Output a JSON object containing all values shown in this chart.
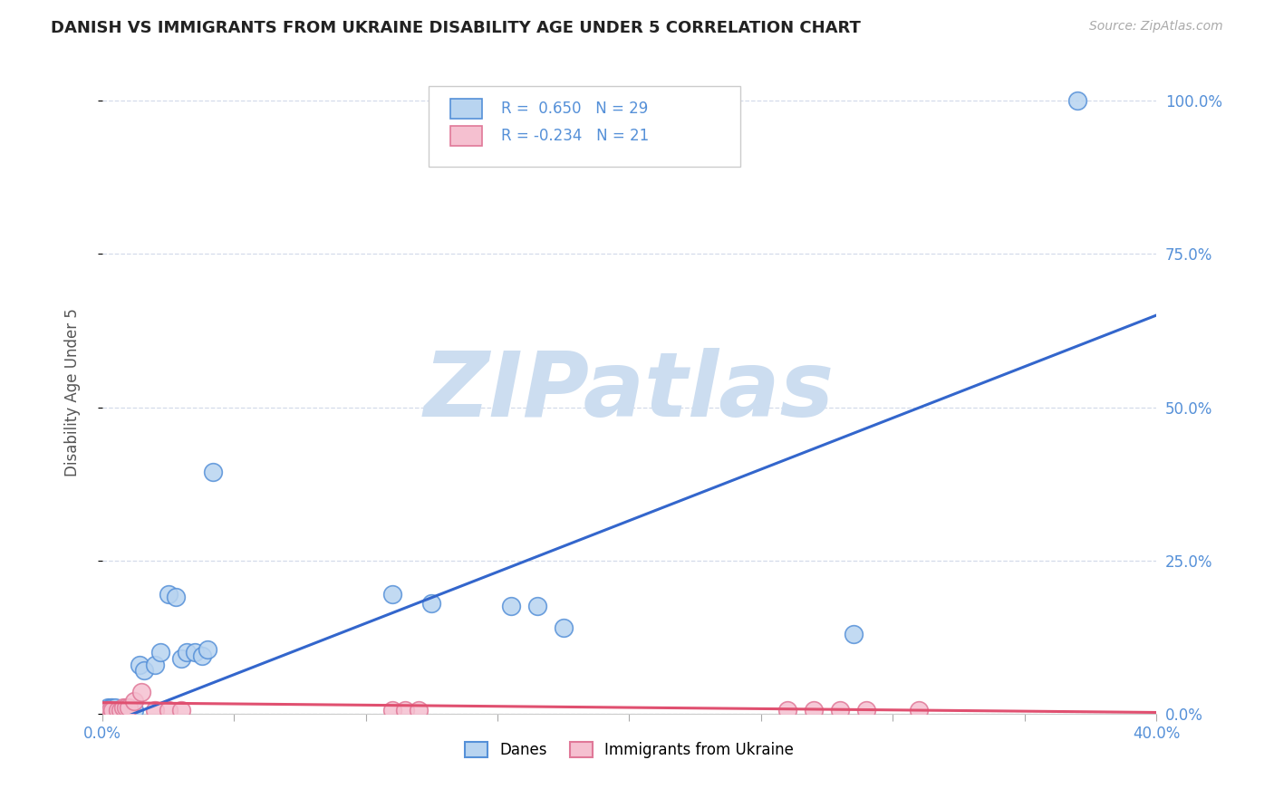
{
  "title": "DANISH VS IMMIGRANTS FROM UKRAINE DISABILITY AGE UNDER 5 CORRELATION CHART",
  "source": "Source: ZipAtlas.com",
  "ylabel": "Disability Age Under 5",
  "background_color": "#ffffff",
  "grid_color": "#d0d8e8",
  "danes_face_color": "#b8d4f0",
  "danes_edge_color": "#5590d8",
  "ukraine_face_color": "#f5c0d0",
  "ukraine_edge_color": "#e07898",
  "danes_line_color": "#3366cc",
  "ukraine_line_color": "#e05070",
  "tick_color": "#5590d8",
  "legend_danes_R": "0.650",
  "legend_danes_N": "29",
  "legend_ukraine_R": "-0.234",
  "legend_ukraine_N": "21",
  "watermark_text": "ZIPatlas",
  "watermark_color": "#ccddf0",
  "xlim": [
    0.0,
    0.4
  ],
  "ylim": [
    0.0,
    105.0
  ],
  "yticks": [
    0.0,
    25.0,
    50.0,
    75.0,
    100.0
  ],
  "ytick_labels": [
    "0.0%",
    "25.0%",
    "50.0%",
    "75.0%",
    "100.0%"
  ],
  "xticks": [
    0.0,
    0.05,
    0.1,
    0.15,
    0.2,
    0.25,
    0.3,
    0.35,
    0.4
  ],
  "xtick_labels_show": [
    "0.0%",
    "",
    "",
    "",
    "",
    "",
    "",
    "",
    "40.0%"
  ],
  "danes_x": [
    0.002,
    0.003,
    0.004,
    0.005,
    0.006,
    0.007,
    0.008,
    0.009,
    0.01,
    0.012,
    0.014,
    0.016,
    0.02,
    0.022,
    0.025,
    0.028,
    0.03,
    0.032,
    0.035,
    0.038,
    0.04,
    0.042,
    0.11,
    0.125,
    0.155,
    0.165,
    0.175,
    0.285,
    0.37
  ],
  "danes_y": [
    1.0,
    1.0,
    1.0,
    1.0,
    0.5,
    0.5,
    0.5,
    0.5,
    0.5,
    0.5,
    8.0,
    7.0,
    8.0,
    10.0,
    19.5,
    19.0,
    9.0,
    10.0,
    10.0,
    9.5,
    10.5,
    39.5,
    19.5,
    18.0,
    17.5,
    17.5,
    14.0,
    13.0,
    100.0
  ],
  "ukraine_x": [
    0.002,
    0.003,
    0.004,
    0.006,
    0.007,
    0.008,
    0.009,
    0.01,
    0.012,
    0.015,
    0.02,
    0.025,
    0.03,
    0.11,
    0.115,
    0.12,
    0.26,
    0.27,
    0.28,
    0.29,
    0.31
  ],
  "ukraine_y": [
    0.5,
    0.5,
    0.5,
    0.5,
    0.5,
    1.0,
    1.0,
    1.0,
    2.0,
    3.5,
    0.5,
    0.5,
    0.5,
    0.5,
    0.5,
    0.5,
    0.5,
    0.5,
    0.5,
    0.5,
    0.5
  ],
  "danes_line_x0": 0.0,
  "danes_line_x1": 0.4,
  "danes_line_y0": -2.0,
  "danes_line_y1": 65.0,
  "ukraine_line_x0": 0.0,
  "ukraine_line_x1": 0.4,
  "ukraine_line_y0": 1.8,
  "ukraine_line_y1": 0.2
}
